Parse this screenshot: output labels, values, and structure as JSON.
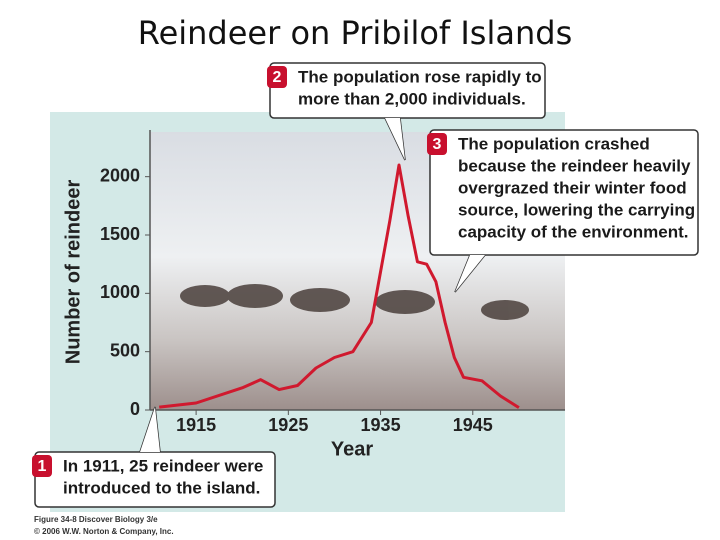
{
  "chart_data": {
    "type": "line",
    "title": "Reindeer on Pribilof Islands",
    "x_label": "Year",
    "y_label": "Number of reindeer",
    "x": [
      1911,
      1915,
      1920,
      1922,
      1924,
      1926,
      1928,
      1930,
      1932,
      1934,
      1936,
      1937,
      1938,
      1939,
      1940,
      1941,
      1942,
      1943,
      1944,
      1946,
      1948,
      1950
    ],
    "series": [
      {
        "color": "#d0192e",
        "values": [
          25,
          60,
          190,
          260,
          175,
          210,
          360,
          450,
          500,
          750,
          1620,
          2100,
          1660,
          1270,
          1250,
          1100,
          750,
          450,
          280,
          250,
          120,
          20
        ]
      }
    ],
    "xlim": [
      1910,
      1955
    ],
    "ylim": [
      0,
      2400
    ],
    "xticks": [
      1915,
      1925,
      1935,
      1945
    ],
    "yticks": [
      0,
      500,
      1000,
      1500,
      2000
    ],
    "grid": false,
    "annotations": [
      {
        "number": "1",
        "lines": [
          "In 1911, 25 reindeer were",
          "introduced to the island."
        ]
      },
      {
        "number": "2",
        "lines": [
          "The population rose rapidly to",
          "more than 2,000 individuals."
        ]
      },
      {
        "number": "3",
        "lines": [
          "The population crashed",
          "because the reindeer heavily",
          "overgrazed their winter food",
          "source, lowering the carrying",
          "capacity of the environment."
        ]
      }
    ],
    "credit": [
      "Figure 34-8 Discover Biology 3/e",
      "© 2006 W.W. Norton & Company, Inc."
    ]
  }
}
